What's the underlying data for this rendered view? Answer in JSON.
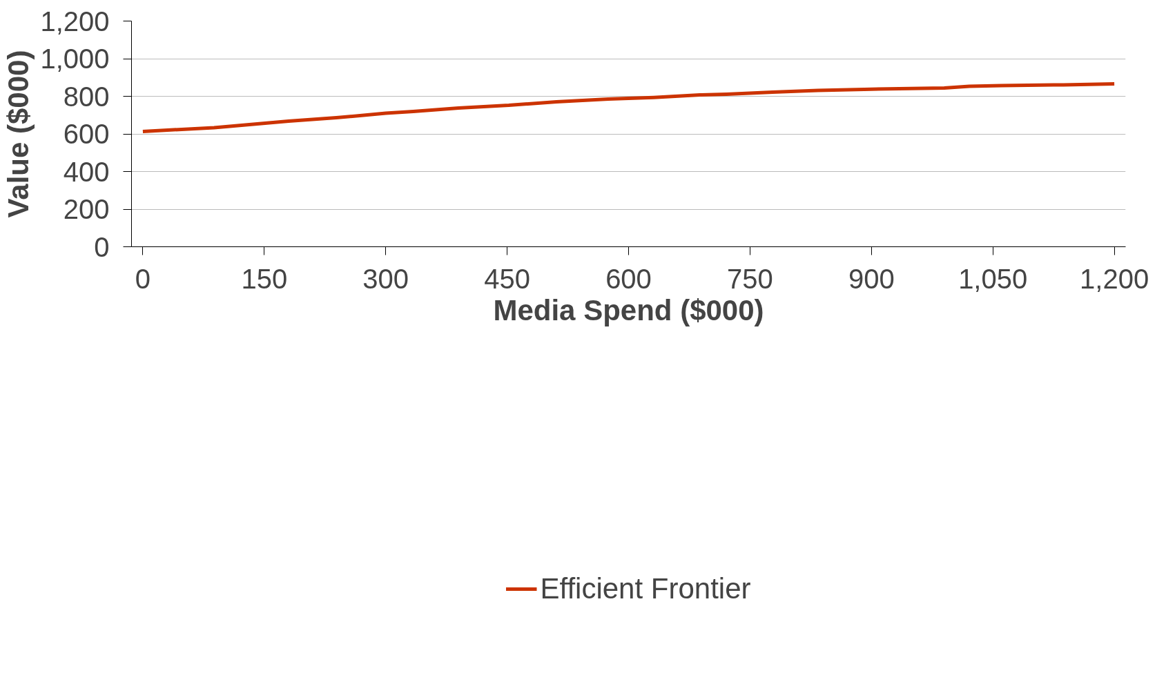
{
  "chart_data": {
    "type": "line",
    "xlabel": "Media Spend ($000)",
    "ylabel": "Value ($000)",
    "x": [
      0,
      88,
      180,
      239,
      300,
      334,
      390,
      452,
      511,
      575,
      631,
      688,
      721,
      778,
      834,
      891,
      990,
      1021,
      1061,
      1137,
      1200
    ],
    "series": [
      {
        "name": "Efficient Frontier",
        "color": "#cc3300",
        "values": [
          613,
          633,
          668,
          686,
          710,
          719,
          738,
          752,
          771,
          785,
          794,
          807,
          811,
          822,
          831,
          837,
          844,
          853,
          857,
          861,
          866
        ]
      }
    ],
    "xlim": [
      -14,
      1214
    ],
    "ylim": [
      0,
      1200
    ],
    "xticks": [
      0,
      150,
      300,
      450,
      {
        "value": 600,
        "label": "600"
      },
      750,
      900,
      {
        "value": 1050,
        "label": "1,050"
      },
      {
        "value": 1200,
        "label": "1,200"
      }
    ],
    "yticks": [
      0,
      200,
      400,
      600,
      800,
      {
        "value": 1000,
        "label": "1,000"
      },
      {
        "value": 1200,
        "label": "1,200"
      }
    ],
    "grid": "y",
    "legend": "bottom",
    "marker": "none",
    "line_style": "solid"
  }
}
